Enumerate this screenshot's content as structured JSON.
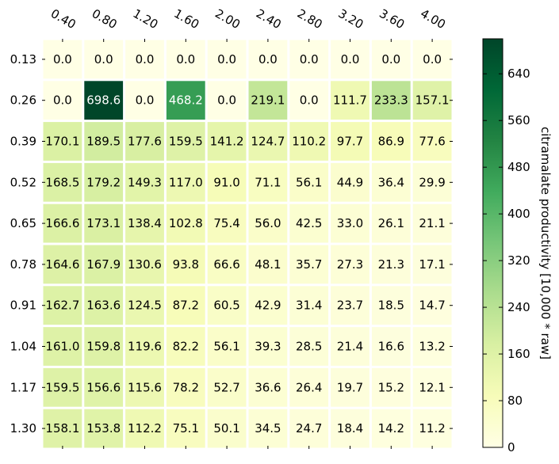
{
  "chart_data": {
    "type": "heatmap",
    "x_ticks": [
      "0.40",
      "0.80",
      "1.20",
      "1.60",
      "2.00",
      "2.40",
      "2.80",
      "3.20",
      "3.60",
      "4.00"
    ],
    "y_ticks": [
      "0.13",
      "0.26",
      "0.39",
      "0.52",
      "0.65",
      "0.78",
      "0.91",
      "1.04",
      "1.17",
      "1.30"
    ],
    "values": [
      [
        0.0,
        0.0,
        0.0,
        0.0,
        0.0,
        0.0,
        0.0,
        0.0,
        0.0,
        0.0
      ],
      [
        0.0,
        698.6,
        0.0,
        468.2,
        0.0,
        219.1,
        0.0,
        111.7,
        233.3,
        157.1
      ],
      [
        170.1,
        189.5,
        177.6,
        159.5,
        141.2,
        124.7,
        110.2,
        97.7,
        86.9,
        77.6
      ],
      [
        168.5,
        179.2,
        149.3,
        117.0,
        91.0,
        71.1,
        56.1,
        44.9,
        36.4,
        29.9
      ],
      [
        166.6,
        173.1,
        138.4,
        102.8,
        75.4,
        56.0,
        42.5,
        33.0,
        26.1,
        21.1
      ],
      [
        164.6,
        167.9,
        130.6,
        93.8,
        66.6,
        48.1,
        35.7,
        27.3,
        21.3,
        17.1
      ],
      [
        162.7,
        163.6,
        124.5,
        87.2,
        60.5,
        42.9,
        31.4,
        23.7,
        18.5,
        14.7
      ],
      [
        161.0,
        159.8,
        119.6,
        82.2,
        56.1,
        39.3,
        28.5,
        21.4,
        16.6,
        13.2
      ],
      [
        159.5,
        156.6,
        115.6,
        78.2,
        52.7,
        36.6,
        26.4,
        19.7,
        15.2,
        12.1
      ],
      [
        158.1,
        153.8,
        112.2,
        75.1,
        50.1,
        34.5,
        24.7,
        18.4,
        14.2,
        11.2
      ]
    ],
    "value_labels": [
      [
        "0.0",
        "0.0",
        "0.0",
        "0.0",
        "0.0",
        "0.0",
        "0.0",
        "0.0",
        "0.0",
        "0.0"
      ],
      [
        "0.0",
        "698.6",
        "0.0",
        "468.2",
        "0.0",
        "219.1",
        "0.0",
        "111.7",
        "233.3",
        "157.1"
      ],
      [
        "170.1",
        "189.5",
        "177.6",
        "159.5",
        "141.2",
        "124.7",
        "110.2",
        "97.7",
        "86.9",
        "77.6"
      ],
      [
        "168.5",
        "179.2",
        "149.3",
        "117.0",
        "91.0",
        "71.1",
        "56.1",
        "44.9",
        "36.4",
        "29.9"
      ],
      [
        "166.6",
        "173.1",
        "138.4",
        "102.8",
        "75.4",
        "56.0",
        "42.5",
        "33.0",
        "26.1",
        "21.1"
      ],
      [
        "164.6",
        "167.9",
        "130.6",
        "93.8",
        "66.6",
        "48.1",
        "35.7",
        "27.3",
        "21.3",
        "17.1"
      ],
      [
        "162.7",
        "163.6",
        "124.5",
        "87.2",
        "60.5",
        "42.9",
        "31.4",
        "23.7",
        "18.5",
        "14.7"
      ],
      [
        "161.0",
        "159.8",
        "119.6",
        "82.2",
        "56.1",
        "39.3",
        "28.5",
        "21.4",
        "16.6",
        "13.2"
      ],
      [
        "159.5",
        "156.6",
        "115.6",
        "78.2",
        "52.7",
        "36.6",
        "26.4",
        "19.7",
        "15.2",
        "12.1"
      ],
      [
        "158.1",
        "153.8",
        "112.2",
        "75.1",
        "50.1",
        "34.5",
        "24.7",
        "18.4",
        "14.2",
        "11.2"
      ]
    ],
    "colormap": "YlGn",
    "colormap_stops": [
      "#ffffe5",
      "#f7fcb9",
      "#d9f0a3",
      "#addd8e",
      "#78c679",
      "#41ab5d",
      "#238443",
      "#006837",
      "#004529"
    ],
    "value_range": [
      0,
      700
    ],
    "colorbar": {
      "label": "citramalate productivity [10,000 * raw]",
      "ticks": [
        "0",
        "80",
        "160",
        "240",
        "320",
        "400",
        "480",
        "560",
        "640"
      ],
      "tick_values": [
        0,
        80,
        160,
        240,
        320,
        400,
        480,
        560,
        640
      ]
    },
    "x_axis_position": "top",
    "grid": false
  }
}
